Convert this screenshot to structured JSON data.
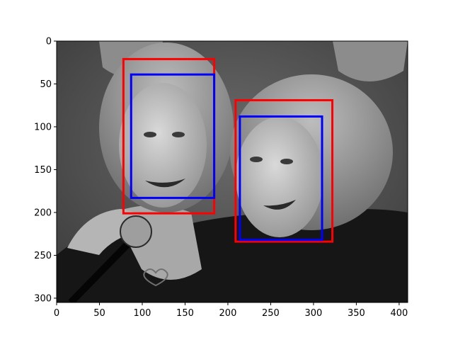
{
  "figure": {
    "x_ticks": [
      "0",
      "50",
      "100",
      "150",
      "200",
      "250",
      "300",
      "350",
      "400"
    ],
    "y_ticks": [
      "0",
      "50",
      "100",
      "150",
      "200",
      "250",
      "300"
    ]
  },
  "chart_data": {
    "type": "image-with-bounding-boxes",
    "image_width": 410,
    "image_height": 305,
    "xlim": [
      0,
      410
    ],
    "ylim": [
      305,
      0
    ],
    "x_tick_values": [
      0,
      50,
      100,
      150,
      200,
      250,
      300,
      350,
      400
    ],
    "y_tick_values": [
      0,
      50,
      100,
      150,
      200,
      250,
      300
    ],
    "boxes": [
      {
        "color": "#ff0000",
        "x0": 78,
        "y0": 21,
        "x1": 184,
        "y1": 201
      },
      {
        "color": "#0000ff",
        "x0": 87,
        "y0": 39,
        "x1": 184,
        "y1": 183
      },
      {
        "color": "#ff0000",
        "x0": 209,
        "y0": 69,
        "x1": 322,
        "y1": 234
      },
      {
        "color": "#0000ff",
        "x0": 214,
        "y0": 88,
        "x1": 310,
        "y1": 232
      }
    ]
  }
}
